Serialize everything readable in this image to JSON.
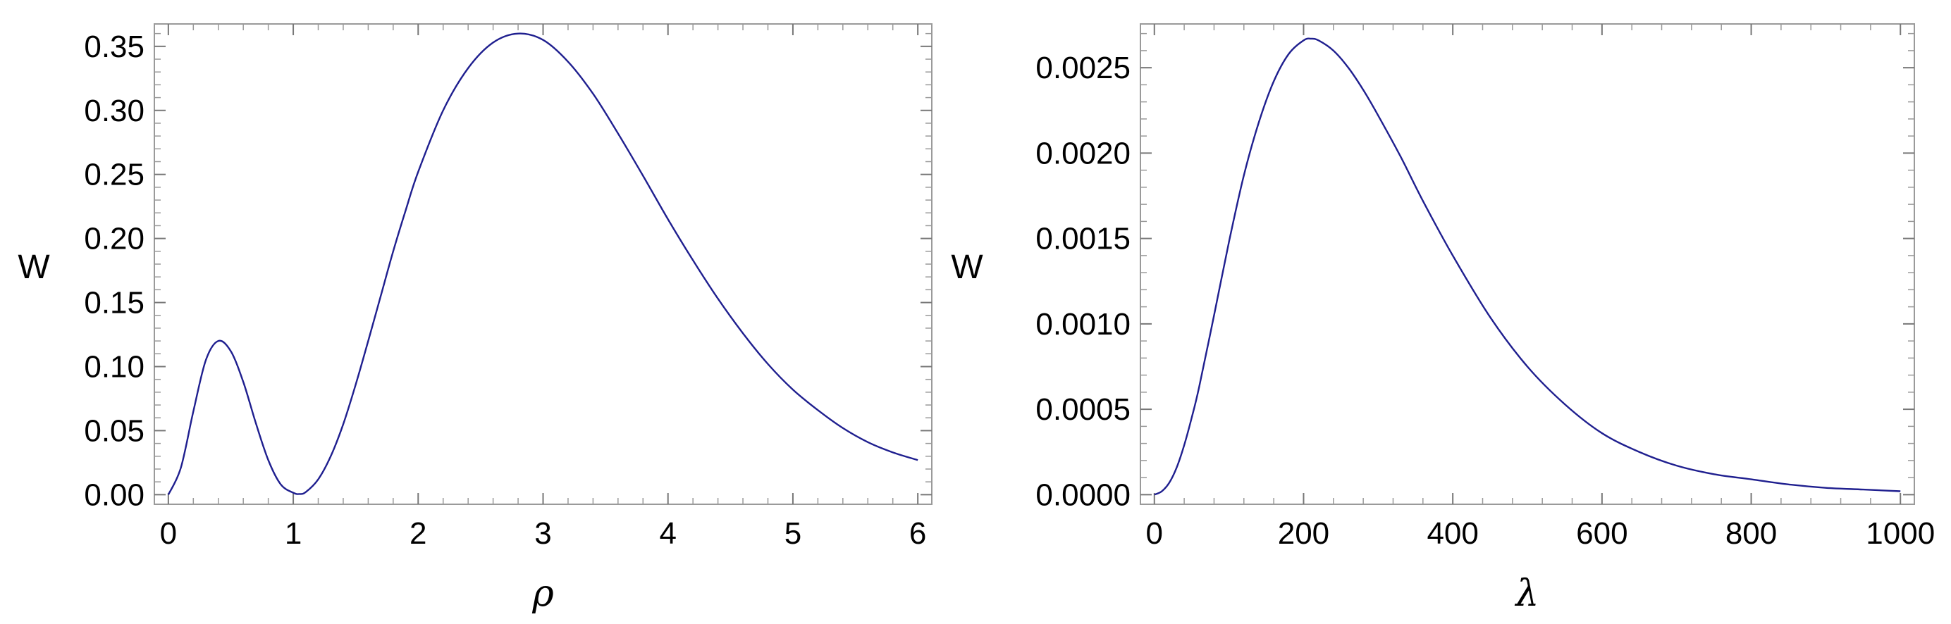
{
  "chart_data": [
    {
      "type": "line",
      "xlabel": "ρ",
      "ylabel": "W",
      "xlim": [
        0,
        6
      ],
      "ylim": [
        0,
        0.36
      ],
      "xticks": [
        "0",
        "1",
        "2",
        "3",
        "4",
        "5",
        "6"
      ],
      "yticks": [
        "0.00",
        "0.05",
        "0.10",
        "0.15",
        "0.20",
        "0.25",
        "0.30",
        "0.35"
      ],
      "series": [
        {
          "color": "#1f1f8f",
          "x": [
            0,
            0.1,
            0.2,
            0.3,
            0.4,
            0.5,
            0.6,
            0.7,
            0.8,
            0.9,
            1.0,
            1.05,
            1.1,
            1.2,
            1.3,
            1.4,
            1.5,
            1.6,
            1.7,
            1.8,
            1.9,
            2.0,
            2.2,
            2.4,
            2.6,
            2.8,
            3.0,
            3.2,
            3.4,
            3.6,
            3.8,
            4.0,
            4.2,
            4.4,
            4.6,
            4.8,
            5.0,
            5.2,
            5.4,
            5.6,
            5.8,
            6.0
          ],
          "y": [
            0.0,
            0.021,
            0.065,
            0.105,
            0.12,
            0.112,
            0.088,
            0.056,
            0.027,
            0.008,
            0.0015,
            0.0005,
            0.002,
            0.012,
            0.03,
            0.055,
            0.086,
            0.12,
            0.155,
            0.19,
            0.222,
            0.252,
            0.3,
            0.333,
            0.353,
            0.36,
            0.355,
            0.338,
            0.313,
            0.282,
            0.249,
            0.215,
            0.183,
            0.153,
            0.126,
            0.102,
            0.082,
            0.066,
            0.052,
            0.041,
            0.033,
            0.027
          ]
        }
      ]
    },
    {
      "type": "line",
      "xlabel": "λ",
      "ylabel": "W",
      "xlim": [
        0,
        1000
      ],
      "ylim": [
        0,
        0.0027
      ],
      "xticks": [
        "0",
        "200",
        "400",
        "600",
        "800",
        "1000"
      ],
      "yticks": [
        "0.0000",
        "0.0005",
        "0.0010",
        "0.0015",
        "0.0020",
        "0.0025"
      ],
      "series": [
        {
          "color": "#1f1f8f",
          "x": [
            0,
            10,
            20,
            30,
            40,
            50,
            60,
            80,
            100,
            120,
            140,
            160,
            180,
            200,
            210,
            220,
            240,
            260,
            280,
            300,
            330,
            360,
            400,
            450,
            500,
            550,
            600,
            650,
            700,
            750,
            800,
            850,
            900,
            950,
            1000
          ],
          "y": [
            0.0,
            2e-05,
            7e-05,
            0.00016,
            0.00029,
            0.00045,
            0.00063,
            0.00105,
            0.00148,
            0.00187,
            0.00218,
            0.00242,
            0.00258,
            0.00266,
            0.00267,
            0.00266,
            0.0026,
            0.0025,
            0.00237,
            0.00222,
            0.00198,
            0.00172,
            0.0014,
            0.00104,
            0.00075,
            0.00053,
            0.00036,
            0.00025,
            0.00017,
            0.00012,
            9e-05,
            6e-05,
            4e-05,
            3e-05,
            2e-05
          ]
        }
      ]
    }
  ]
}
